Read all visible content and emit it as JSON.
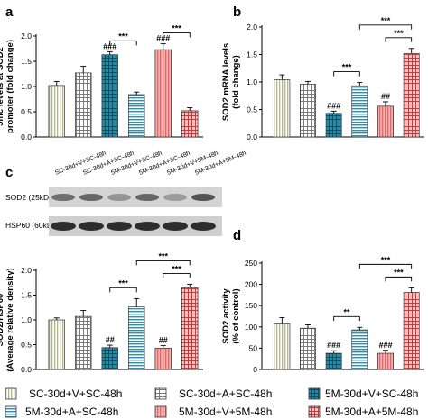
{
  "legend": [
    {
      "label": "SC-30d+V+SC-48h",
      "pattern": "vlines",
      "color": "#c9c9a6"
    },
    {
      "label": "SC-30d+A+SC-48h",
      "pattern": "checker",
      "color": "#909090"
    },
    {
      "label": "5M-30d+V+SC-48h",
      "pattern": "checker",
      "color": "#1f7a94"
    },
    {
      "label": "5M-30d+A+SC-48h",
      "pattern": "hlines",
      "color": "#2e8fb0"
    },
    {
      "label": "5M-30d+V+5M-48h",
      "pattern": "vlines",
      "color": "#f08c8c"
    },
    {
      "label": "5M-30d+A+5M-48h",
      "pattern": "checker",
      "color": "#c93a3a"
    }
  ],
  "western_blot": {
    "panel_label": "c",
    "lanes": [
      "SC-30d+V+SC-48h",
      "SC-30d+A+SC-48h",
      "5M-30d+V+SC-48h",
      "5M-30d+A+SC-48h",
      "5M-30d+V+5M-48h",
      "5M-30d+A+5M-48h"
    ],
    "bands": [
      "SOD2 (25kD)",
      "HSP60 (60kD)"
    ]
  },
  "chart_data": [
    {
      "panel": "a",
      "type": "bar",
      "ylabel": [
        "5mc levels at SOD2",
        "promoter (fold change)"
      ],
      "ylim": [
        0,
        2.0
      ],
      "yticks": [
        "0.0",
        "0.5",
        "1.0",
        "1.5",
        "2.0"
      ],
      "values": [
        1.02,
        1.27,
        1.63,
        0.84,
        1.73,
        0.52
      ],
      "errors": [
        0.08,
        0.13,
        0.06,
        0.05,
        0.12,
        0.06
      ],
      "bar_marks": [
        "",
        "",
        "###",
        "",
        "###",
        ""
      ],
      "brackets": [
        {
          "from": 2,
          "to": 3,
          "label": "***"
        },
        {
          "from": 4,
          "to": 5,
          "label": "***"
        }
      ]
    },
    {
      "panel": "b",
      "type": "bar",
      "ylabel": [
        "SOD2 mRNA levels",
        "(fold change)"
      ],
      "ylim": [
        0,
        2.0
      ],
      "yticks": [
        "0.0",
        "0.5",
        "1.0",
        "1.5",
        "2.0"
      ],
      "values": [
        1.04,
        0.96,
        0.43,
        0.93,
        0.56,
        1.52
      ],
      "errors": [
        0.09,
        0.05,
        0.04,
        0.06,
        0.08,
        0.09
      ],
      "bar_marks": [
        "",
        "",
        "###",
        "",
        "##",
        ""
      ],
      "brackets": [
        {
          "from": 2,
          "to": 3,
          "label": "***"
        },
        {
          "from": 4,
          "to": 5,
          "label": "***"
        },
        {
          "from": 3,
          "to": 5,
          "label": "***"
        }
      ]
    },
    {
      "panel": "c",
      "type": "bar",
      "ylabel": [
        "SOD2/HSP60",
        "(Average relative density)"
      ],
      "ylim": [
        0,
        2.0
      ],
      "yticks": [
        "0.0",
        "0.5",
        "1.0",
        "1.5",
        "2.0"
      ],
      "values": [
        1.0,
        1.07,
        0.44,
        1.26,
        0.43,
        1.65
      ],
      "errors": [
        0.04,
        0.12,
        0.05,
        0.17,
        0.05,
        0.07
      ],
      "bar_marks": [
        "",
        "",
        "##",
        "",
        "##",
        ""
      ],
      "brackets": [
        {
          "from": 2,
          "to": 3,
          "label": "***"
        },
        {
          "from": 4,
          "to": 5,
          "label": "***"
        },
        {
          "from": 3,
          "to": 5,
          "label": "***"
        }
      ]
    },
    {
      "panel": "d",
      "type": "bar",
      "ylabel": [
        "SOD2 activity",
        "(% of control)"
      ],
      "ylim": [
        0,
        250
      ],
      "yticks": [
        "0",
        "50",
        "100",
        "150",
        "200",
        "250"
      ],
      "values": [
        107,
        97,
        38,
        93,
        38,
        181
      ],
      "errors": [
        15,
        8,
        6,
        6,
        7,
        11
      ],
      "bar_marks": [
        "",
        "",
        "###",
        "",
        "###",
        ""
      ],
      "brackets": [
        {
          "from": 2,
          "to": 3,
          "label": "**"
        },
        {
          "from": 4,
          "to": 5,
          "label": "***"
        },
        {
          "from": 3,
          "to": 5,
          "label": "***"
        }
      ]
    }
  ]
}
